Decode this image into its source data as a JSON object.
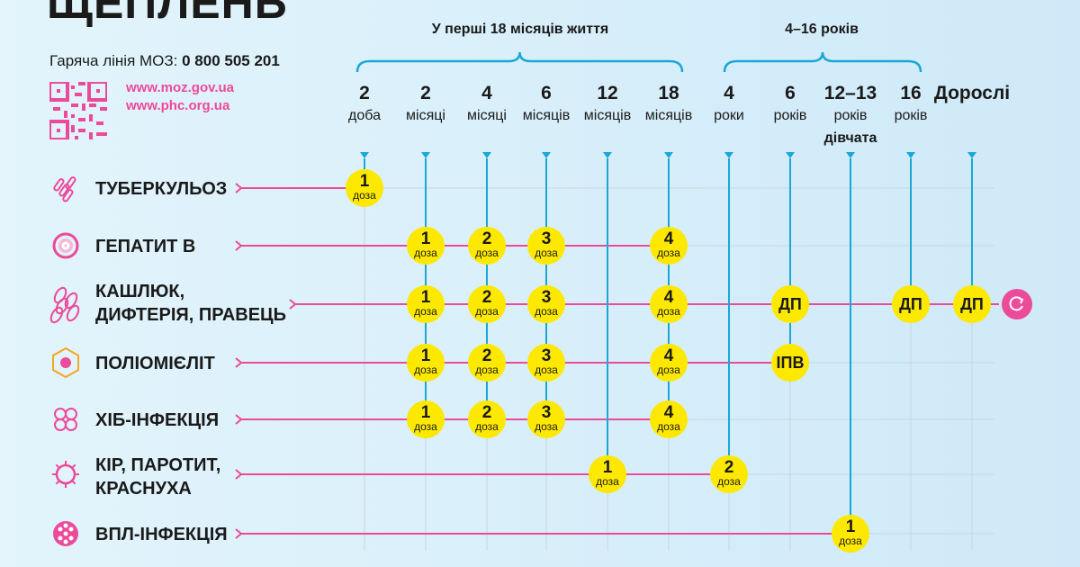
{
  "title": "ЩЕПЛЕНЬ",
  "hotline": {
    "label": "Гаряча лінія МОЗ:",
    "number": "0 800 505 201"
  },
  "urls": [
    "www.moz.gov.ua",
    "www.phc.org.ua"
  ],
  "groups": [
    {
      "label": "У перші 18 місяців життя"
    },
    {
      "label": "4–16 років"
    }
  ],
  "columns": [
    {
      "num": "2",
      "unit": "доба"
    },
    {
      "num": "2",
      "unit": "місяці"
    },
    {
      "num": "4",
      "unit": "місяці"
    },
    {
      "num": "6",
      "unit": "місяців"
    },
    {
      "num": "12",
      "unit": "місяців"
    },
    {
      "num": "18",
      "unit": "місяців"
    },
    {
      "num": "4",
      "unit": "роки"
    },
    {
      "num": "6",
      "unit": "років"
    },
    {
      "num": "12–13",
      "unit": "років",
      "note": "дівчата"
    },
    {
      "num": "16",
      "unit": "років"
    },
    {
      "num": "Дорослі",
      "unit": ""
    }
  ],
  "dose_word": "доза",
  "rows": [
    {
      "label": "ТУБЕРКУЛЬОЗ",
      "icon": "bacillus-icon",
      "doses": [
        {
          "col": 0,
          "n": "1"
        }
      ]
    },
    {
      "label": "ГЕПАТИТ В",
      "icon": "hepatitis-virus-icon",
      "doses": [
        {
          "col": 1,
          "n": "1"
        },
        {
          "col": 2,
          "n": "2"
        },
        {
          "col": 3,
          "n": "3"
        },
        {
          "col": 5,
          "n": "4"
        }
      ]
    },
    {
      "label": [
        "КАШЛЮК,",
        "ДИФТЕРІЯ, ПРАВЕЦЬ"
      ],
      "icon": "bacteria-cluster-icon",
      "doses": [
        {
          "col": 1,
          "n": "1"
        },
        {
          "col": 2,
          "n": "2"
        },
        {
          "col": 3,
          "n": "3"
        },
        {
          "col": 5,
          "n": "4"
        },
        {
          "col": 7,
          "text": "ДП"
        },
        {
          "col": 9,
          "text": "ДП"
        },
        {
          "col": 10,
          "text": "ДП"
        }
      ],
      "repeat_icon": "restart-icon"
    },
    {
      "label": "ПОЛІОМІЄЛІТ",
      "icon": "polio-virus-icon",
      "doses": [
        {
          "col": 1,
          "n": "1"
        },
        {
          "col": 2,
          "n": "2"
        },
        {
          "col": 3,
          "n": "3"
        },
        {
          "col": 5,
          "n": "4"
        },
        {
          "col": 7,
          "text": "ІПВ"
        }
      ]
    },
    {
      "label": "ХІБ-ІНФЕКЦІЯ",
      "icon": "hib-bacteria-icon",
      "doses": [
        {
          "col": 1,
          "n": "1"
        },
        {
          "col": 2,
          "n": "2"
        },
        {
          "col": 3,
          "n": "3"
        },
        {
          "col": 5,
          "n": "4"
        }
      ]
    },
    {
      "label": [
        "КІР, ПАРОТИТ,",
        "КРАСНУХА"
      ],
      "icon": "measles-virus-icon",
      "doses": [
        {
          "col": 4,
          "n": "1"
        },
        {
          "col": 6,
          "n": "2"
        }
      ]
    },
    {
      "label": "ВПЛ-ІНФЕКЦІЯ",
      "icon": "hpv-virus-icon",
      "doses": [
        {
          "col": 8,
          "n": "1"
        }
      ]
    }
  ],
  "colors": {
    "pink": "#ec4a9a",
    "blue": "#1ba7d6",
    "yellow": "#fde800",
    "grid": "#c9d6df"
  }
}
